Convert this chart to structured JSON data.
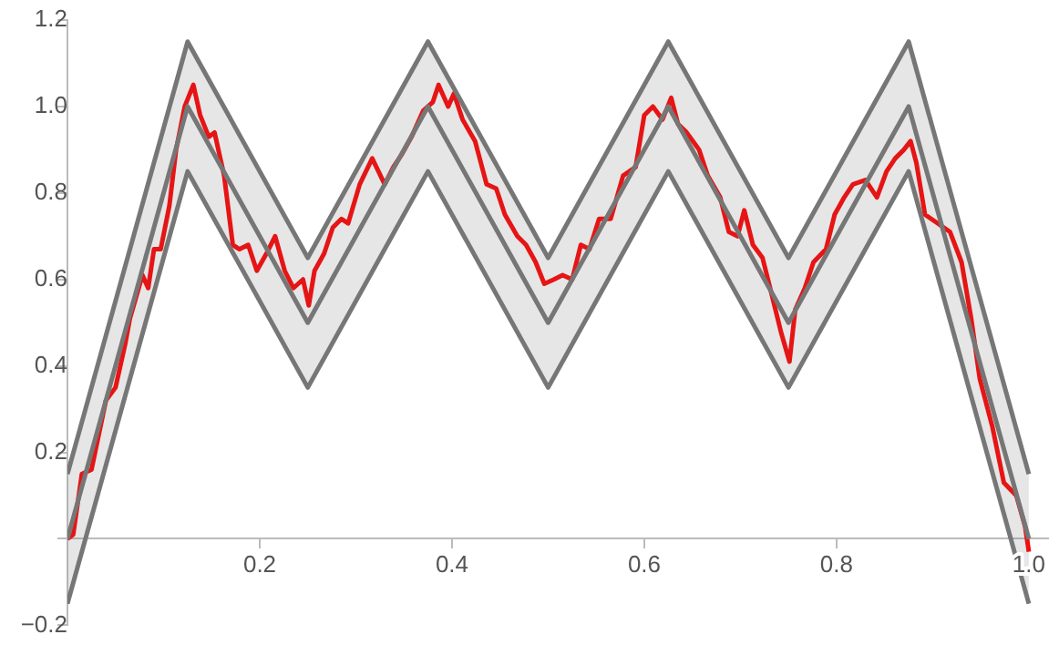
{
  "chart_data": {
    "type": "line",
    "xlim": [
      0,
      1.02
    ],
    "ylim": [
      -0.2,
      1.2
    ],
    "xticks": [
      0.2,
      0.4,
      0.6,
      0.8,
      {
        "value": 1,
        "label": "1.0"
      }
    ],
    "yticks": [
      {
        "value": -0.2,
        "label": "−0.2"
      },
      {
        "value": 0,
        "label": null
      },
      0.2,
      0.4,
      0.6,
      0.8,
      {
        "value": 1,
        "label": "1.0"
      },
      1.2
    ],
    "grid": false,
    "legend": false,
    "marker": "none",
    "line_style": "solid",
    "series": [
      {
        "color": "#777777",
        "x": [
          0,
          0.125,
          0.25,
          0.375,
          0.5,
          0.625,
          0.75,
          0.875,
          1
        ],
        "values": [
          0,
          1,
          0.5,
          1,
          0.5,
          1,
          0.5,
          1,
          0
        ],
        "lower": [
          -0.15,
          0.85,
          0.35,
          0.85,
          0.35,
          0.85,
          0.35,
          0.85,
          -0.15
        ],
        "upper": [
          0.15,
          1.15,
          0.65,
          1.15,
          0.65,
          1.15,
          0.65,
          1.15,
          0.15
        ]
      },
      {
        "color": "#777777",
        "x": [
          0,
          0.125,
          0.25,
          0.375,
          0.5,
          0.625,
          0.75,
          0.875,
          1
        ],
        "values": [
          0.15,
          1.15,
          0.65,
          1.15,
          0.65,
          1.15,
          0.65,
          1.15,
          0.15
        ]
      },
      {
        "color": "#777777",
        "x": [
          0,
          0.125,
          0.25,
          0.375,
          0.5,
          0.625,
          0.75,
          0.875,
          1
        ],
        "values": [
          -0.15,
          0.85,
          0.35,
          0.85,
          0.35,
          0.85,
          0.35,
          0.85,
          -0.15
        ]
      },
      {
        "color": "#ff0000",
        "x": [
          0,
          0.006,
          0.015,
          0.025,
          0.04,
          0.05,
          0.06,
          0.065,
          0.078,
          0.084,
          0.09,
          0.097,
          0.106,
          0.113,
          0.122,
          0.131,
          0.138,
          0.147,
          0.153,
          0.163,
          0.172,
          0.179,
          0.188,
          0.197,
          0.207,
          0.216,
          0.226,
          0.235,
          0.245,
          0.251,
          0.257,
          0.267,
          0.276,
          0.285,
          0.292,
          0.304,
          0.317,
          0.33,
          0.339,
          0.348,
          0.358,
          0.37,
          0.38,
          0.386,
          0.396,
          0.402,
          0.411,
          0.424,
          0.436,
          0.446,
          0.455,
          0.468,
          0.477,
          0.487,
          0.496,
          0.506,
          0.515,
          0.525,
          0.534,
          0.543,
          0.553,
          0.565,
          0.578,
          0.591,
          0.6,
          0.609,
          0.619,
          0.628,
          0.635,
          0.644,
          0.657,
          0.666,
          0.679,
          0.688,
          0.697,
          0.704,
          0.713,
          0.723,
          0.732,
          0.742,
          0.751,
          0.757,
          0.767,
          0.776,
          0.789,
          0.798,
          0.808,
          0.817,
          0.83,
          0.842,
          0.852,
          0.861,
          0.87,
          0.877,
          0.883,
          0.892,
          0.905,
          0.918,
          0.93,
          0.94,
          0.949,
          0.962,
          0.974,
          0.987,
          0.996,
          1.0
        ],
        "values": [
          0,
          0.01,
          0.15,
          0.16,
          0.32,
          0.35,
          0.45,
          0.51,
          0.61,
          0.58,
          0.67,
          0.67,
          0.77,
          0.9,
          1.0,
          1.05,
          0.98,
          0.93,
          0.94,
          0.84,
          0.68,
          0.67,
          0.68,
          0.62,
          0.66,
          0.7,
          0.62,
          0.58,
          0.6,
          0.54,
          0.62,
          0.66,
          0.72,
          0.74,
          0.73,
          0.82,
          0.88,
          0.82,
          0.86,
          0.89,
          0.93,
          0.99,
          1.01,
          1.05,
          1.0,
          1.03,
          0.97,
          0.92,
          0.82,
          0.81,
          0.75,
          0.7,
          0.68,
          0.64,
          0.59,
          0.6,
          0.61,
          0.6,
          0.68,
          0.67,
          0.74,
          0.74,
          0.84,
          0.86,
          0.98,
          1.0,
          0.97,
          1.02,
          0.96,
          0.94,
          0.9,
          0.84,
          0.79,
          0.71,
          0.7,
          0.76,
          0.68,
          0.65,
          0.57,
          0.48,
          0.41,
          0.53,
          0.58,
          0.64,
          0.67,
          0.75,
          0.79,
          0.82,
          0.83,
          0.79,
          0.85,
          0.88,
          0.9,
          0.92,
          0.87,
          0.75,
          0.73,
          0.71,
          0.64,
          0.51,
          0.37,
          0.26,
          0.13,
          0.1,
          0.03,
          -0.03
        ]
      }
    ]
  }
}
